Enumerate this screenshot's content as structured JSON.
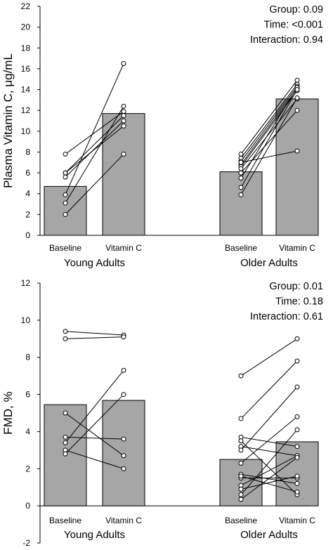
{
  "chart_data": [
    {
      "type": "bar",
      "ylabel": "Plasma Vitamin C, μg/mL",
      "ylim": [
        0,
        22
      ],
      "yticks": [
        0,
        2,
        4,
        6,
        8,
        10,
        12,
        14,
        16,
        18,
        20,
        22
      ],
      "groups": [
        {
          "name": "Young Adults",
          "categories": [
            "Baseline",
            "Vitamin C"
          ],
          "values": [
            4.7,
            11.7
          ],
          "pairs": [
            [
              7.8,
              11.9
            ],
            [
              6.0,
              10.5
            ],
            [
              5.6,
              11.0
            ],
            [
              3.9,
              16.5
            ],
            [
              3.1,
              12.4
            ],
            [
              2.0,
              7.8
            ],
            [
              6.0,
              11.5
            ]
          ]
        },
        {
          "name": "Older Adults",
          "categories": [
            "Baseline",
            "Vitamin C"
          ],
          "values": [
            6.1,
            13.1
          ],
          "pairs": [
            [
              7.8,
              14.9
            ],
            [
              7.4,
              14.5
            ],
            [
              7.1,
              14.3
            ],
            [
              6.8,
              14.1
            ],
            [
              6.6,
              13.9
            ],
            [
              6.4,
              13.1
            ],
            [
              6.0,
              12.0
            ],
            [
              5.5,
              14.2
            ],
            [
              4.6,
              14.0
            ],
            [
              3.9,
              13.2
            ],
            [
              7.0,
              8.1
            ]
          ]
        }
      ],
      "annotations": [
        "Group: 0.09",
        "Time: <0.001",
        "Interaction: 0.94"
      ]
    },
    {
      "type": "bar",
      "ylabel": "FMD, %",
      "ylim": [
        -2,
        12
      ],
      "yticks": [
        -2,
        0,
        2,
        4,
        6,
        8,
        10,
        12
      ],
      "groups": [
        {
          "name": "Young Adults",
          "categories": [
            "Baseline",
            "Vitamin C"
          ],
          "values": [
            5.45,
            5.68
          ],
          "pairs": [
            [
              9.4,
              9.2
            ],
            [
              9.0,
              9.1
            ],
            [
              5.0,
              2.7
            ],
            [
              3.7,
              3.6
            ],
            [
              3.4,
              7.3
            ],
            [
              3.0,
              2.0
            ],
            [
              2.8,
              6.0
            ]
          ]
        },
        {
          "name": "Older Adults",
          "categories": [
            "Baseline",
            "Vitamin C"
          ],
          "values": [
            2.5,
            3.45
          ],
          "pairs": [
            [
              7.0,
              9.0
            ],
            [
              4.7,
              7.8
            ],
            [
              3.7,
              3.2
            ],
            [
              3.5,
              0.6
            ],
            [
              3.2,
              2.7
            ],
            [
              3.0,
              6.4
            ],
            [
              2.3,
              4.8
            ],
            [
              1.7,
              1.2
            ],
            [
              1.5,
              1.5
            ],
            [
              1.1,
              2.7
            ],
            [
              0.9,
              1.6
            ],
            [
              0.6,
              4.1
            ],
            [
              0.35,
              2.6
            ],
            [
              1.6,
              0.75
            ]
          ]
        }
      ],
      "annotations": [
        "Group: 0.01",
        "Time: 0.18",
        "Interaction: 0.61"
      ]
    }
  ]
}
